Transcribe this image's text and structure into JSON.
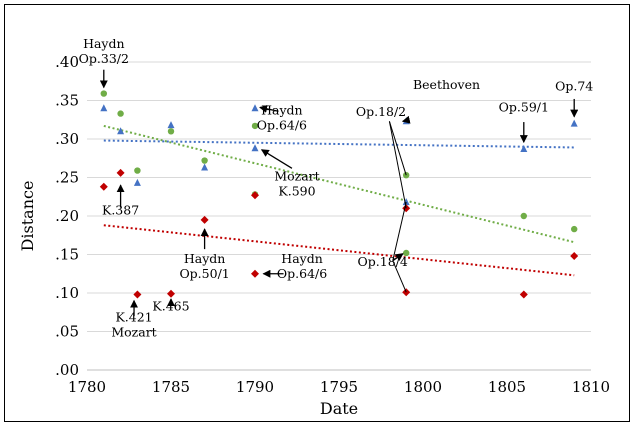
{
  "chart_data": {
    "type": "scatter",
    "title": "",
    "xlabel": "Date",
    "ylabel": "Distance",
    "xlim": [
      1780,
      1810
    ],
    "ylim": [
      0,
      0.4
    ],
    "x_ticks": [
      1780,
      1785,
      1790,
      1795,
      1800,
      1805,
      1810
    ],
    "x_tick_labels": [
      "1780",
      "1785",
      "1790",
      "1795",
      "1800",
      "1805",
      "1810"
    ],
    "y_ticks": [
      0,
      0.05,
      0.1,
      0.15,
      0.2,
      0.25,
      0.3,
      0.35,
      0.4
    ],
    "y_tick_labels": [
      ".00",
      ".05",
      ".10",
      ".15",
      ".20",
      ".25",
      ".30",
      ".35",
      ".40"
    ],
    "grid": "horizontal",
    "legend": "none",
    "series": [
      {
        "color": "#70ad47",
        "marker": "circle",
        "points": [
          [
            1781,
            0.359
          ],
          [
            1782,
            0.333
          ],
          [
            1783,
            0.259
          ],
          [
            1785,
            0.31
          ],
          [
            1787,
            0.272
          ],
          [
            1790,
            0.317
          ],
          [
            1790,
            0.228
          ],
          [
            1799,
            0.253
          ],
          [
            1799,
            0.152
          ],
          [
            1806,
            0.2
          ],
          [
            1809,
            0.183
          ]
        ],
        "trend": [
          [
            1781,
            0.317
          ],
          [
            1809,
            0.166
          ]
        ]
      },
      {
        "color": "#4472c4",
        "marker": "triangle",
        "points": [
          [
            1781,
            0.34
          ],
          [
            1782,
            0.31
          ],
          [
            1783,
            0.243
          ],
          [
            1785,
            0.318
          ],
          [
            1787,
            0.263
          ],
          [
            1790,
            0.34
          ],
          [
            1790,
            0.288
          ],
          [
            1799,
            0.323
          ],
          [
            1799,
            0.218
          ],
          [
            1806,
            0.287
          ],
          [
            1809,
            0.32
          ]
        ],
        "trend": [
          [
            1781,
            0.298
          ],
          [
            1809,
            0.289
          ]
        ]
      },
      {
        "color": "#c00000",
        "marker": "diamond",
        "points": [
          [
            1781,
            0.238
          ],
          [
            1782,
            0.256
          ],
          [
            1783,
            0.098
          ],
          [
            1785,
            0.099
          ],
          [
            1787,
            0.195
          ],
          [
            1790,
            0.125
          ],
          [
            1790,
            0.227
          ],
          [
            1799,
            0.21
          ],
          [
            1799,
            0.101
          ],
          [
            1806,
            0.098
          ],
          [
            1809,
            0.148
          ]
        ],
        "trend": [
          [
            1781,
            0.188
          ],
          [
            1809,
            0.123
          ]
        ]
      }
    ],
    "annotations": [
      {
        "text": [
          "Haydn",
          "Op.33/2"
        ],
        "at": [
          1781,
          0.418
        ],
        "arrow": [
          [
            1781,
            0.39
          ],
          [
            1781,
            0.367
          ]
        ]
      },
      {
        "text": [
          "Haydn",
          "Op.64/6"
        ],
        "at": [
          1791.6,
          0.332
        ],
        "arrow": [
          [
            1791.4,
            0.336
          ],
          [
            1790.3,
            0.341
          ]
        ]
      },
      {
        "text": [
          "Mozart",
          "K.590"
        ],
        "at": [
          1792.5,
          0.246
        ],
        "arrow": [
          [
            1792.2,
            0.262
          ],
          [
            1790.4,
            0.286
          ]
        ]
      },
      {
        "text": [
          "K.387"
        ],
        "at": [
          1782,
          0.202
        ],
        "arrow": [
          [
            1782,
            0.211
          ],
          [
            1782,
            0.24
          ]
        ]
      },
      {
        "text": [
          "Haydn",
          "Op.50/1"
        ],
        "at": [
          1787,
          0.139
        ],
        "arrow": [
          [
            1787,
            0.157
          ],
          [
            1787,
            0.183
          ]
        ]
      },
      {
        "text": [
          "Haydn",
          "Op.64/6"
        ],
        "at": [
          1792.8,
          0.139
        ],
        "arrow": [
          [
            1791.7,
            0.125
          ],
          [
            1790.5,
            0.125
          ]
        ]
      },
      {
        "text": [
          "K.421",
          "Mozart"
        ],
        "at": [
          1782.8,
          0.063
        ],
        "arrow": [
          [
            1782.8,
            0.07
          ],
          [
            1782.8,
            0.09
          ]
        ]
      },
      {
        "text": [
          "K.465"
        ],
        "at": [
          1785,
          0.077
        ],
        "arrow": [
          [
            1785,
            0.085
          ],
          [
            1785,
            0.092
          ]
        ]
      },
      {
        "text": [
          "Op.18/2"
        ],
        "at": [
          1797.5,
          0.33
        ],
        "arrow": [
          [
            1799,
            0.324
          ],
          [
            1798.8,
            0.323
          ]
        ]
      },
      {
        "text": [
          "Op.18/4"
        ],
        "at": [
          1797.6,
          0.135
        ],
        "arrow": [
          [
            1798.2,
            0.142
          ],
          [
            1798.8,
            0.151
          ]
        ]
      },
      {
        "text": [
          "Beethoven"
        ],
        "at": [
          1801.4,
          0.365
        ],
        "arrow": null
      },
      {
        "text": [
          "Op.59/1"
        ],
        "at": [
          1806,
          0.336
        ],
        "arrow": [
          [
            1806,
            0.322
          ],
          [
            1806,
            0.296
          ]
        ]
      },
      {
        "text": [
          "Op.74"
        ],
        "at": [
          1809,
          0.363
        ],
        "arrow": [
          [
            1809,
            0.352
          ],
          [
            1809,
            0.329
          ]
        ]
      }
    ],
    "connector_lines": [
      [
        [
          1798.0,
          0.323
        ],
        [
          1799,
          0.21
        ]
      ],
      [
        [
          1798.0,
          0.323
        ],
        [
          1799,
          0.253
        ]
      ],
      [
        [
          1798.2,
          0.142
        ],
        [
          1799,
          0.218
        ]
      ],
      [
        [
          1798.2,
          0.142
        ],
        [
          1799,
          0.101
        ]
      ]
    ]
  }
}
